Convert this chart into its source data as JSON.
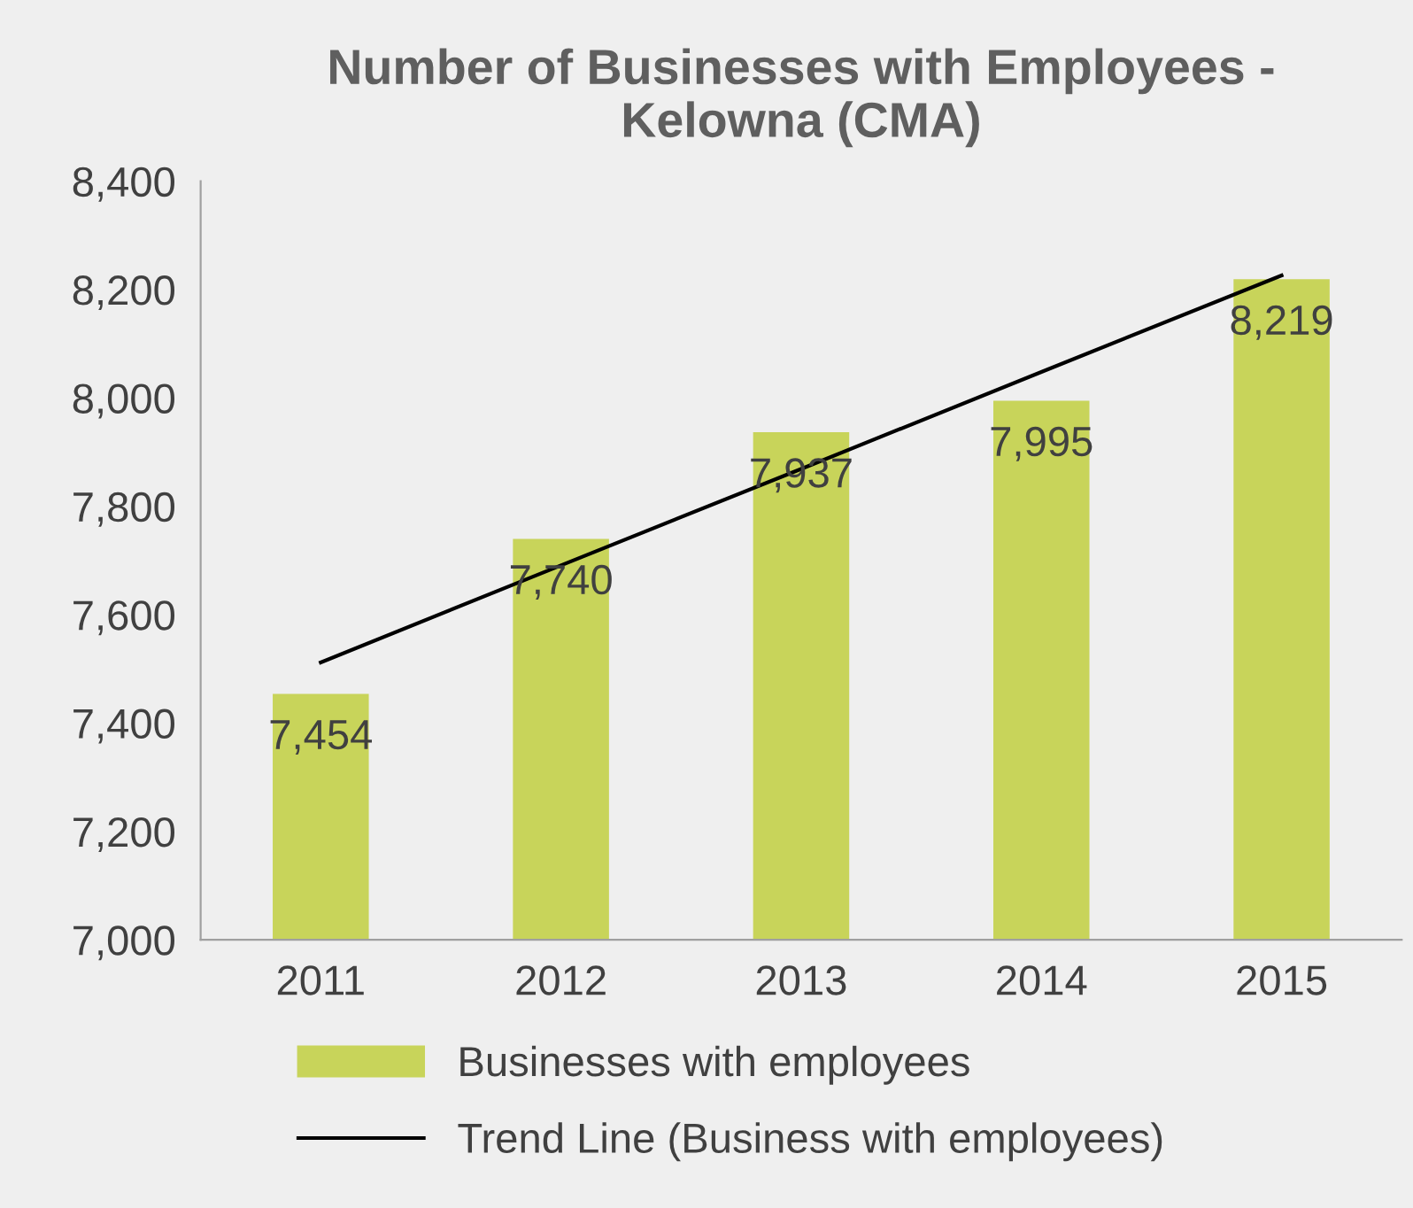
{
  "chart_data": {
    "type": "bar",
    "title": "Number of Businesses with Employees -\nKelowna (CMA)",
    "categories": [
      "2011",
      "2012",
      "2013",
      "2014",
      "2015"
    ],
    "series": [
      {
        "name": "Businesses with employees",
        "color": "#c8d45a",
        "values": [
          7454,
          7740,
          7937,
          7995,
          8219
        ],
        "value_labels": [
          "7,454",
          "7,740",
          "7,937",
          "7,995",
          "8,219"
        ]
      },
      {
        "name": "Trend Line (Business with employees)",
        "type": "line",
        "color": "#000000",
        "values": [
          7512,
          7691,
          7869,
          8048,
          8226
        ]
      }
    ],
    "ylim": [
      7000,
      8400
    ],
    "yticks": [
      {
        "value": 7000,
        "label": "7,000"
      },
      {
        "value": 7200,
        "label": "7,200"
      },
      {
        "value": 7400,
        "label": "7,400"
      },
      {
        "value": 7600,
        "label": "7,600"
      },
      {
        "value": 7800,
        "label": "7,800"
      },
      {
        "value": 8000,
        "label": "8,000"
      },
      {
        "value": 8200,
        "label": "8,200"
      },
      {
        "value": 8400,
        "label": "8,400"
      }
    ],
    "grid": false,
    "legend": "bottom"
  }
}
